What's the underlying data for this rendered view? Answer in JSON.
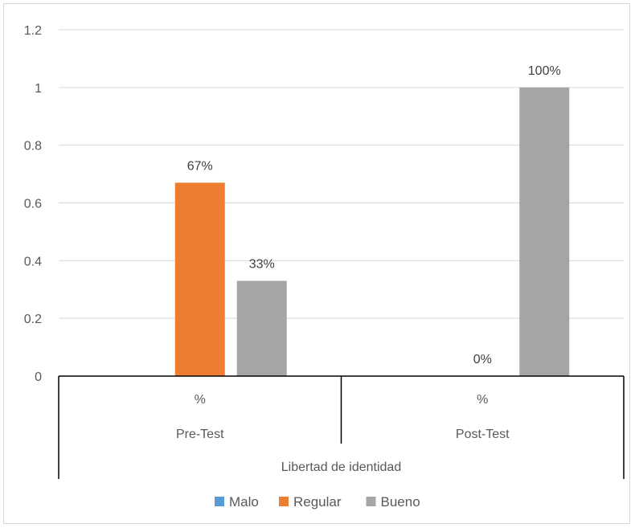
{
  "chart_data": {
    "type": "bar",
    "groups": [
      {
        "sub": "%",
        "label": "Pre-Test"
      },
      {
        "sub": "%",
        "label": "Post-Test"
      }
    ],
    "outer_label": "Libertad de identidad",
    "series": [
      {
        "name": "Malo",
        "color": "#5b9bd5",
        "values": [
          0,
          0
        ],
        "labels": [
          "",
          ""
        ]
      },
      {
        "name": "Regular",
        "color": "#ed7d31",
        "values": [
          0.67,
          0
        ],
        "labels": [
          "67%",
          "0%"
        ]
      },
      {
        "name": "Bueno",
        "color": "#a5a5a5",
        "values": [
          0.33,
          1.0
        ],
        "labels": [
          "33%",
          "100%"
        ]
      }
    ],
    "yticks": [
      "0",
      "0.2",
      "0.4",
      "0.6",
      "0.8",
      "1",
      "1.2"
    ],
    "ylim": [
      0,
      1.2
    ],
    "grid": true,
    "legend_position": "bottom"
  }
}
